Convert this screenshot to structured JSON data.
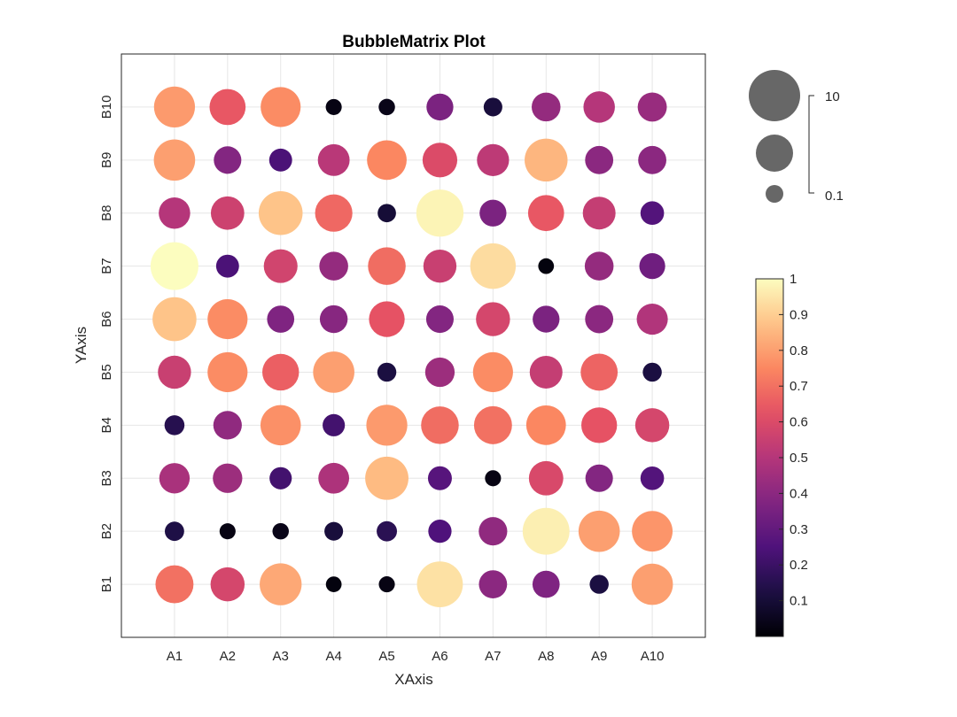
{
  "chart_data": {
    "type": "bubble-matrix",
    "title": "BubbleMatrix Plot",
    "xlabel": "XAxis",
    "ylabel": "YAxis",
    "x_categories": [
      "A1",
      "A2",
      "A3",
      "A4",
      "A5",
      "A6",
      "A7",
      "A8",
      "A9",
      "A10"
    ],
    "y_categories": [
      "B1",
      "B2",
      "B3",
      "B4",
      "B5",
      "B6",
      "B7",
      "B8",
      "B9",
      "B10"
    ],
    "grid": true,
    "colormap": "magma",
    "color_range": [
      0,
      1
    ],
    "colorbar_ticks": [
      "0.1",
      "0.2",
      "0.3",
      "0.4",
      "0.5",
      "0.6",
      "0.7",
      "0.8",
      "0.9",
      "1"
    ],
    "size_legend": {
      "max_label": "10",
      "min_label": "0.1",
      "placement": "top-right"
    },
    "values": [
      [
        0.7,
        0.58,
        0.82,
        0.02,
        0.03,
        0.94,
        0.4,
        0.37,
        0.12,
        0.8
      ],
      [
        0.13,
        0.03,
        0.04,
        0.11,
        0.16,
        0.25,
        0.41,
        0.97,
        0.8,
        0.78
      ],
      [
        0.47,
        0.44,
        0.22,
        0.48,
        0.86,
        0.27,
        0.03,
        0.59,
        0.38,
        0.26
      ],
      [
        0.15,
        0.41,
        0.77,
        0.22,
        0.79,
        0.69,
        0.7,
        0.75,
        0.63,
        0.58
      ],
      [
        0.55,
        0.76,
        0.66,
        0.8,
        0.12,
        0.44,
        0.76,
        0.54,
        0.67,
        0.12
      ],
      [
        0.88,
        0.76,
        0.37,
        0.39,
        0.63,
        0.38,
        0.58,
        0.36,
        0.4,
        0.49
      ],
      [
        1.0,
        0.24,
        0.57,
        0.42,
        0.69,
        0.55,
        0.93,
        0.02,
        0.42,
        0.33
      ],
      [
        0.5,
        0.56,
        0.88,
        0.68,
        0.1,
        0.98,
        0.36,
        0.64,
        0.54,
        0.26
      ],
      [
        0.8,
        0.38,
        0.24,
        0.51,
        0.75,
        0.6,
        0.52,
        0.85,
        0.4,
        0.4
      ],
      [
        0.79,
        0.64,
        0.76,
        0.03,
        0.04,
        0.36,
        0.11,
        0.42,
        0.5,
        0.43
      ]
    ]
  }
}
